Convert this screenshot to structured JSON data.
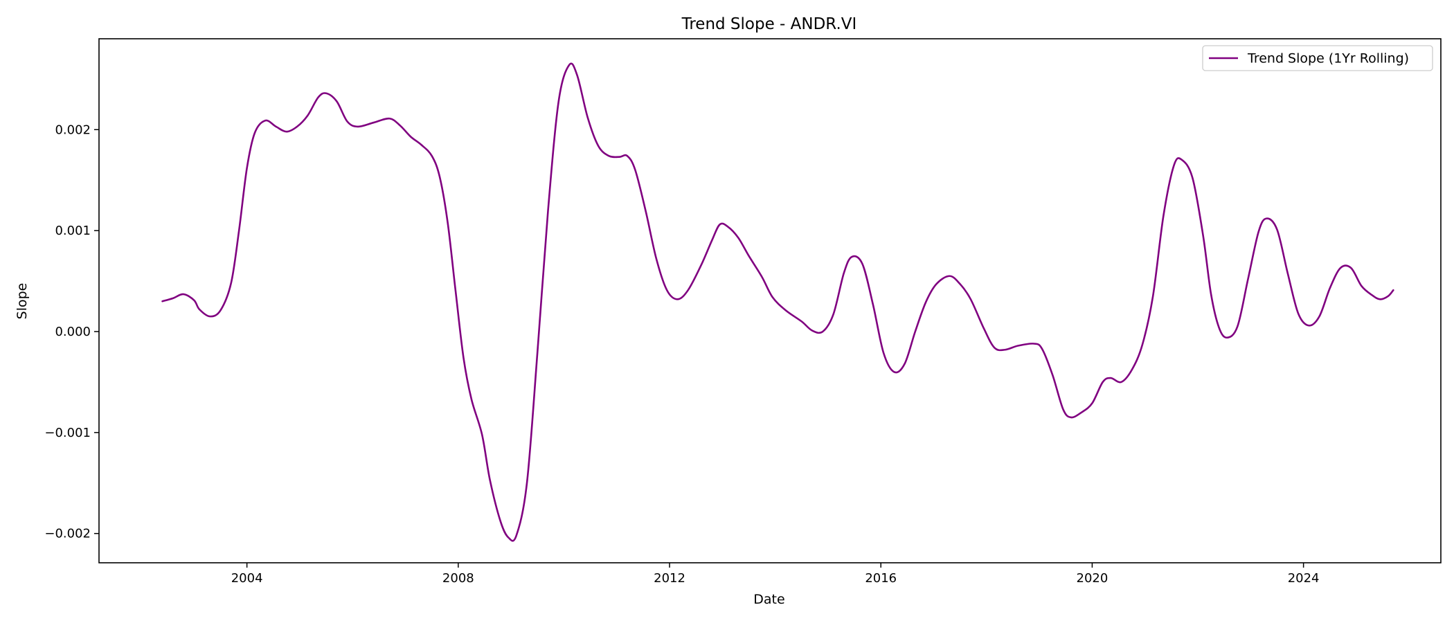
{
  "chart_data": {
    "type": "line",
    "title": "Trend Slope - ANDR.VI",
    "xlabel": "Date",
    "ylabel": "Slope",
    "x_ticks": [
      "2004",
      "2008",
      "2012",
      "2016",
      "2020",
      "2024"
    ],
    "y_ticks": [
      "0.002",
      "0.001",
      "0.000",
      "−0.001",
      "−0.002"
    ],
    "xlim": [
      2001.2,
      2026.6
    ],
    "ylim": [
      -0.00229,
      0.0029
    ],
    "grid": false,
    "legend_position": "top-right",
    "series": [
      {
        "name": "Trend Slope (1Yr Rolling)",
        "color": "#800080",
        "points": [
          [
            2002.4,
            0.0003
          ],
          [
            2002.6,
            0.00033
          ],
          [
            2002.8,
            0.00037
          ],
          [
            2003.0,
            0.00031
          ],
          [
            2003.1,
            0.00022
          ],
          [
            2003.3,
            0.00015
          ],
          [
            2003.5,
            0.00021
          ],
          [
            2003.7,
            0.00048
          ],
          [
            2003.85,
            0.001
          ],
          [
            2004.0,
            0.00162
          ],
          [
            2004.15,
            0.00197
          ],
          [
            2004.35,
            0.00209
          ],
          [
            2004.55,
            0.00203
          ],
          [
            2004.75,
            0.00198
          ],
          [
            2004.95,
            0.00203
          ],
          [
            2005.15,
            0.00214
          ],
          [
            2005.35,
            0.00232
          ],
          [
            2005.5,
            0.00236
          ],
          [
            2005.7,
            0.00228
          ],
          [
            2005.9,
            0.00208
          ],
          [
            2006.1,
            0.00203
          ],
          [
            2006.4,
            0.00207
          ],
          [
            2006.7,
            0.00211
          ],
          [
            2006.9,
            0.00204
          ],
          [
            2007.1,
            0.00193
          ],
          [
            2007.3,
            0.00185
          ],
          [
            2007.5,
            0.00174
          ],
          [
            2007.65,
            0.00153
          ],
          [
            2007.8,
            0.00108
          ],
          [
            2007.95,
            0.0004
          ],
          [
            2008.1,
            -0.00026
          ],
          [
            2008.25,
            -0.00067
          ],
          [
            2008.45,
            -0.00102
          ],
          [
            2008.6,
            -0.00147
          ],
          [
            2008.8,
            -0.00188
          ],
          [
            2008.95,
            -0.00204
          ],
          [
            2009.1,
            -0.00202
          ],
          [
            2009.3,
            -0.0015
          ],
          [
            2009.5,
            -0.0002
          ],
          [
            2009.7,
            0.0012
          ],
          [
            2009.9,
            0.00228
          ],
          [
            2010.1,
            0.00264
          ],
          [
            2010.25,
            0.00254
          ],
          [
            2010.45,
            0.00212
          ],
          [
            2010.65,
            0.00184
          ],
          [
            2010.85,
            0.00174
          ],
          [
            2011.05,
            0.00173
          ],
          [
            2011.2,
            0.00174
          ],
          [
            2011.35,
            0.0016
          ],
          [
            2011.55,
            0.00119
          ],
          [
            2011.75,
            0.00072
          ],
          [
            2011.95,
            0.00041
          ],
          [
            2012.15,
            0.00032
          ],
          [
            2012.35,
            0.00041
          ],
          [
            2012.6,
            0.00066
          ],
          [
            2012.8,
            0.0009
          ],
          [
            2012.95,
            0.00106
          ],
          [
            2013.1,
            0.00104
          ],
          [
            2013.3,
            0.00093
          ],
          [
            2013.5,
            0.00075
          ],
          [
            2013.75,
            0.00054
          ],
          [
            2013.95,
            0.00034
          ],
          [
            2014.2,
            0.00021
          ],
          [
            2014.5,
            0.0001
          ],
          [
            2014.7,
            1e-05
          ],
          [
            2014.9,
            0.0
          ],
          [
            2015.1,
            0.00017
          ],
          [
            2015.3,
            0.00058
          ],
          [
            2015.45,
            0.00074
          ],
          [
            2015.65,
            0.00067
          ],
          [
            2015.85,
            0.00027
          ],
          [
            2016.05,
            -0.00021
          ],
          [
            2016.25,
            -0.0004
          ],
          [
            2016.45,
            -0.00032
          ],
          [
            2016.65,
            0.0
          ],
          [
            2016.85,
            0.00029
          ],
          [
            2017.05,
            0.00047
          ],
          [
            2017.3,
            0.00055
          ],
          [
            2017.5,
            0.00047
          ],
          [
            2017.7,
            0.00032
          ],
          [
            2017.95,
            3e-05
          ],
          [
            2018.15,
            -0.00016
          ],
          [
            2018.35,
            -0.00018
          ],
          [
            2018.6,
            -0.00014
          ],
          [
            2018.9,
            -0.00012
          ],
          [
            2019.05,
            -0.00017
          ],
          [
            2019.25,
            -0.00043
          ],
          [
            2019.45,
            -0.00077
          ],
          [
            2019.6,
            -0.00085
          ],
          [
            2019.8,
            -0.0008
          ],
          [
            2020.0,
            -0.00071
          ],
          [
            2020.2,
            -0.0005
          ],
          [
            2020.35,
            -0.00046
          ],
          [
            2020.55,
            -0.0005
          ],
          [
            2020.75,
            -0.00038
          ],
          [
            2020.95,
            -0.00013
          ],
          [
            2021.15,
            0.00035
          ],
          [
            2021.35,
            0.00115
          ],
          [
            2021.55,
            0.00165
          ],
          [
            2021.7,
            0.0017
          ],
          [
            2021.9,
            0.00152
          ],
          [
            2022.1,
            0.00095
          ],
          [
            2022.25,
            0.00037
          ],
          [
            2022.4,
            4e-05
          ],
          [
            2022.55,
            -6e-05
          ],
          [
            2022.75,
            5e-05
          ],
          [
            2022.95,
            0.00052
          ],
          [
            2023.15,
            0.00099
          ],
          [
            2023.3,
            0.00112
          ],
          [
            2023.5,
            0.00101
          ],
          [
            2023.7,
            0.00058
          ],
          [
            2023.9,
            0.00018
          ],
          [
            2024.1,
            6e-05
          ],
          [
            2024.3,
            0.00015
          ],
          [
            2024.5,
            0.00043
          ],
          [
            2024.7,
            0.00063
          ],
          [
            2024.9,
            0.00063
          ],
          [
            2025.1,
            0.00045
          ],
          [
            2025.3,
            0.00036
          ],
          [
            2025.45,
            0.00032
          ],
          [
            2025.6,
            0.00035
          ],
          [
            2025.7,
            0.00041
          ]
        ]
      }
    ]
  }
}
